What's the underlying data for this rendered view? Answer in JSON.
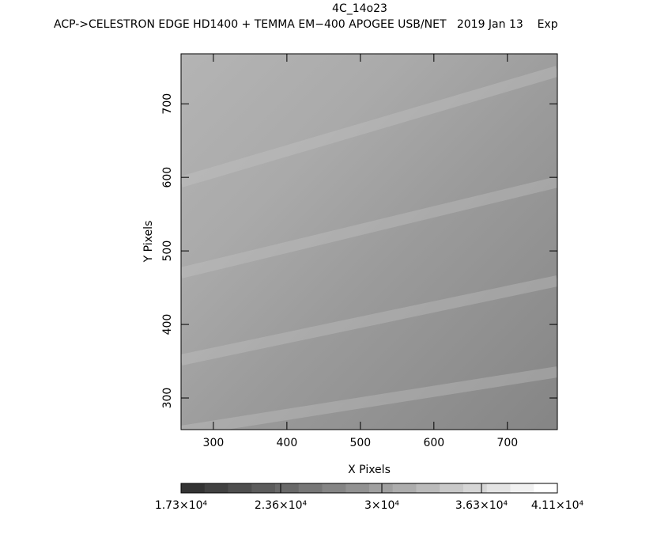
{
  "chart_data": {
    "type": "image",
    "title": "4C_14o23",
    "subtitle": "ACP->CELESTRON EDGE HD1400 + TEMMA EM−400 APOGEE USB/NET   2019 Jan 13    Exp",
    "xlabel": "X Pixels",
    "ylabel": "Y Pixels",
    "xlim": [
      256,
      768
    ],
    "ylim": [
      257,
      768
    ],
    "xticks": [
      300,
      400,
      500,
      600,
      700
    ],
    "yticks": [
      300,
      400,
      500,
      600,
      700
    ],
    "colorbar": {
      "lim": [
        17300,
        41100
      ],
      "levels": 16,
      "ticks": [
        {
          "value": 17300,
          "label": "1.73×10⁴"
        },
        {
          "value": 23600,
          "label": "2.36×10⁴"
        },
        {
          "value": 30000,
          "label": "3×10⁴"
        },
        {
          "value": 36300,
          "label": "3.63×10⁴"
        },
        {
          "value": 41100,
          "label": "4.11×10⁴"
        }
      ]
    }
  }
}
